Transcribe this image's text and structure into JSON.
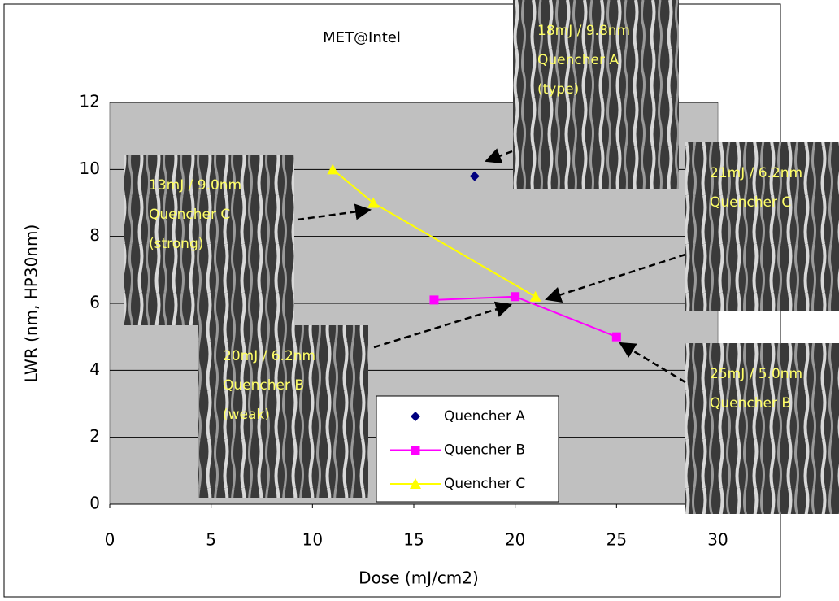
{
  "chart_data": {
    "type": "scatter",
    "title": "MET@Intel",
    "x_label": "Dose (mJ/cm2)",
    "y_label": "LWR (nm, HP30nm)",
    "xlim": [
      0,
      30
    ],
    "xticks": [
      0,
      5,
      10,
      15,
      20,
      25,
      30
    ],
    "ylim": [
      0,
      12
    ],
    "yticks": [
      0,
      2,
      4,
      6,
      8,
      10,
      12
    ],
    "grid": true,
    "series": [
      {
        "name": "Quencher A",
        "color": "#000080",
        "marker": "diamond",
        "line": false,
        "x": [
          18
        ],
        "values": [
          9.8
        ]
      },
      {
        "name": "Quencher B",
        "color": "#ff00ff",
        "marker": "square",
        "line": true,
        "x": [
          16,
          20,
          25
        ],
        "values": [
          6.1,
          6.2,
          5.0
        ]
      },
      {
        "name": "Quencher C",
        "color": "#ffff00",
        "marker": "triangle",
        "line": true,
        "x": [
          11,
          13,
          21
        ],
        "values": [
          10,
          9,
          6.2
        ]
      }
    ],
    "annotations": [
      {
        "lines": [
          "18mJ / 9.8nm",
          "Quencher A",
          "(type)"
        ]
      },
      {
        "lines": [
          "13mJ / 9.0nm",
          "Quencher C",
          "(strong)"
        ]
      },
      {
        "lines": [
          "21mJ / 6.2nm",
          "Quencher C"
        ]
      },
      {
        "lines": [
          "20mJ / 6.2nm",
          "Quencher B",
          "(weak)"
        ]
      },
      {
        "lines": [
          "25mJ / 5.0nm",
          "Quencher B"
        ]
      }
    ]
  }
}
